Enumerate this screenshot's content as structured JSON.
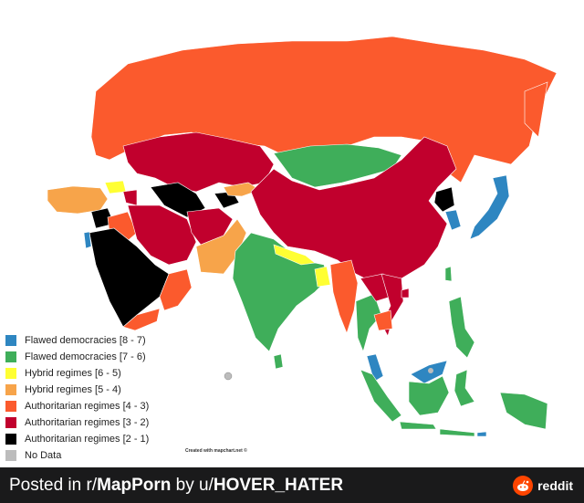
{
  "colors": {
    "flawed_high": "#2e86c1",
    "flawed_low": "#3fae5a",
    "hybrid_high": "#ffff33",
    "hybrid_low": "#f7a44a",
    "auth_high": "#fb5a2d",
    "auth_mid": "#c1002d",
    "auth_low": "#000000",
    "no_data": "#bcbcbc"
  },
  "legend": {
    "items": [
      {
        "label": "Flawed democracies [8 - 7)",
        "color": "#2e86c1"
      },
      {
        "label": "Flawed democracies [7 - 6)",
        "color": "#3fae5a"
      },
      {
        "label": "Hybrid regimes [6 - 5)",
        "color": "#ffff33"
      },
      {
        "label": "Hybrid regimes [5 - 4)",
        "color": "#f7a44a"
      },
      {
        "label": "Authoritarian regimes [4 - 3)",
        "color": "#fb5a2d"
      },
      {
        "label": "Authoritarian regimes [3 - 2)",
        "color": "#c1002d"
      },
      {
        "label": "Authoritarian regimes [2 - 1)",
        "color": "#000000"
      },
      {
        "label": "No Data",
        "color": "#bcbcbc"
      }
    ]
  },
  "credit": "Created with mapchart.net ©",
  "footer": {
    "posted_in": "Posted in r/",
    "subreddit": "MapPorn",
    "by": " by u/",
    "user": "HOVER_HATER",
    "brand": "reddit",
    "logo_icon": "reddit-alien-icon"
  }
}
